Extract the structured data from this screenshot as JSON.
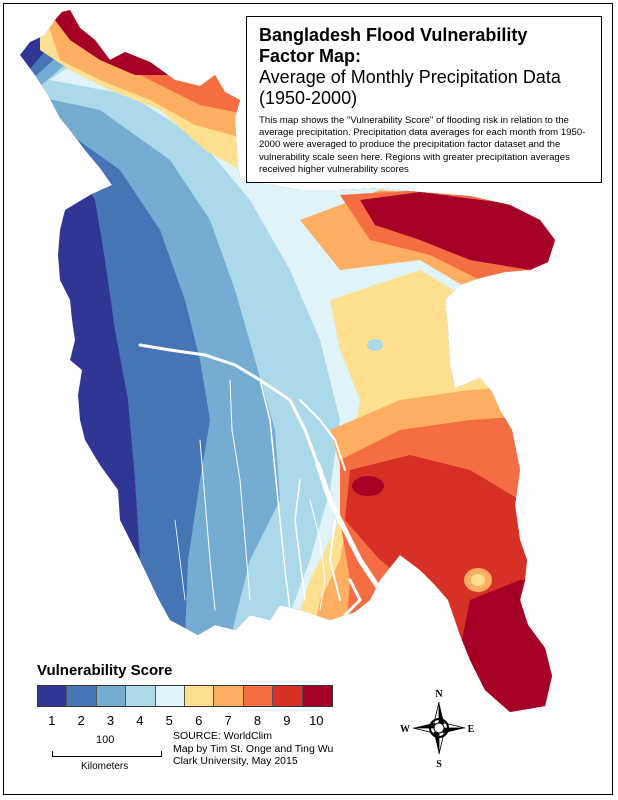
{
  "title": {
    "line1": "Bangladesh Flood Vulnerability",
    "line2": "Factor Map:",
    "line3": "Average of Monthly Precipitation Data",
    "line4": "(1950-2000)",
    "description": "This map shows the \"Vulnerability Score\" of flooding risk in relation to the average precipitation. Precipitation data averages for each month from 1950-2000 were averaged to produce the precipitation factor dataset and the vulnerability scale seen here. Regions with greater precipitation averages received higher vulnerability scores"
  },
  "legend": {
    "title": "Vulnerability Score",
    "items": [
      {
        "label": "1",
        "color": "#313695"
      },
      {
        "label": "2",
        "color": "#4575b4"
      },
      {
        "label": "3",
        "color": "#74add1"
      },
      {
        "label": "4",
        "color": "#abd9e9"
      },
      {
        "label": "5",
        "color": "#e0f3f8"
      },
      {
        "label": "6",
        "color": "#fee090"
      },
      {
        "label": "7",
        "color": "#fdae61"
      },
      {
        "label": "8",
        "color": "#f46d43"
      },
      {
        "label": "9",
        "color": "#d73027"
      },
      {
        "label": "10",
        "color": "#a50026"
      }
    ]
  },
  "scale_bar": {
    "distance": "100",
    "unit": "Kilometers"
  },
  "credits": {
    "source": "SOURCE: WorldClim",
    "authors": "Map by Tim St. Onge and Ting Wu",
    "institution": "Clark University, May 2015"
  },
  "compass": {
    "n": "N",
    "s": "S",
    "e": "E",
    "w": "W"
  }
}
